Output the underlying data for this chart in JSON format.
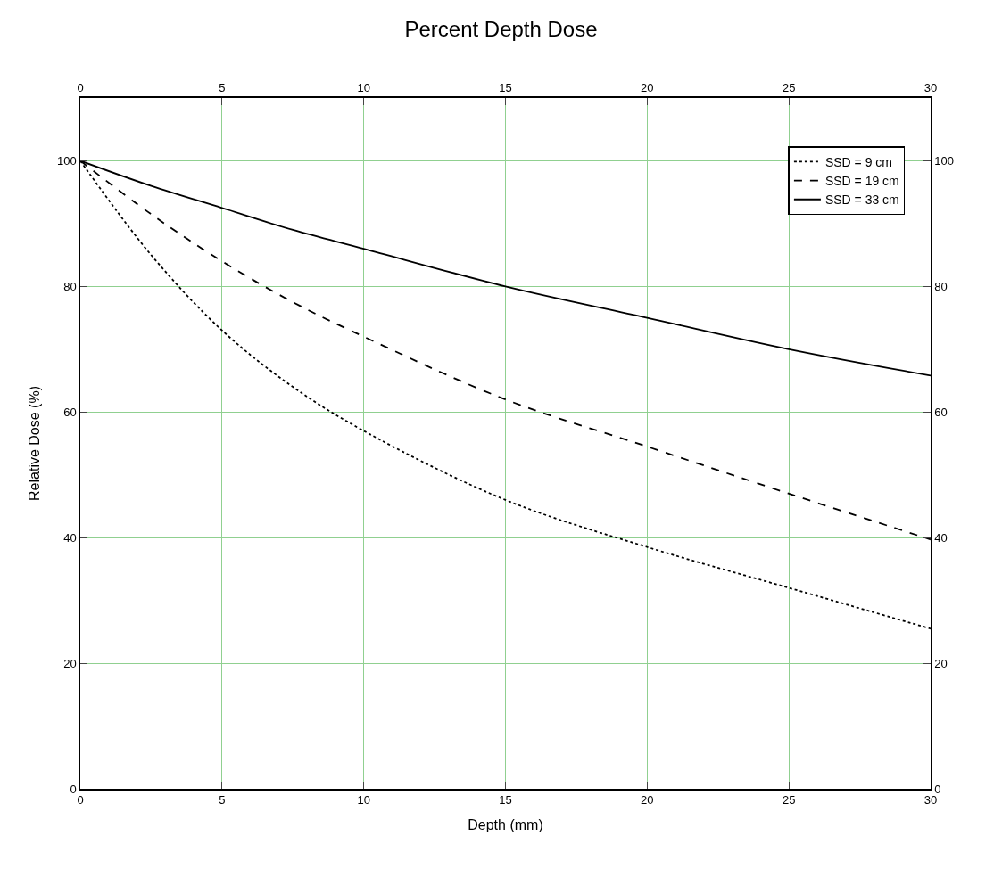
{
  "chart_data": {
    "type": "line",
    "title": "Percent Depth Dose",
    "xlabel": "Depth (mm)",
    "ylabel": "Relative Dose (%)",
    "x": [
      0,
      2.5,
      5,
      7.5,
      10,
      15,
      20,
      25,
      30
    ],
    "series": [
      {
        "name": "SSD = 9 cm",
        "color": "#000000",
        "line_style": "dotted",
        "values": [
          100,
          85,
          73,
          64,
          57,
          46,
          38.5,
          32,
          25.5
        ]
      },
      {
        "name": "SSD = 19 cm",
        "color": "#000000",
        "line_style": "dashed",
        "values": [
          100,
          91.5,
          84,
          77.5,
          72,
          62,
          54.5,
          47,
          39.7
        ]
      },
      {
        "name": "SSD = 33 cm",
        "color": "#000000",
        "line_style": "solid",
        "values": [
          100,
          96,
          92.5,
          89,
          86,
          80,
          75,
          70,
          65.8
        ]
      }
    ],
    "xlim": [
      0,
      30
    ],
    "xticks": [
      0,
      5,
      10,
      15,
      20,
      25,
      30
    ],
    "x2lim": [
      0,
      30
    ],
    "x2ticks": [
      0,
      5,
      10,
      15,
      20,
      25,
      30
    ],
    "ylim": [
      0,
      110
    ],
    "yticks": [
      0,
      20,
      40,
      60,
      80,
      100
    ],
    "y2lim": [
      0,
      110
    ],
    "y2ticks": [
      0,
      20,
      40,
      60,
      80,
      100
    ],
    "grid": true,
    "legend": "top right",
    "marker": "none"
  }
}
